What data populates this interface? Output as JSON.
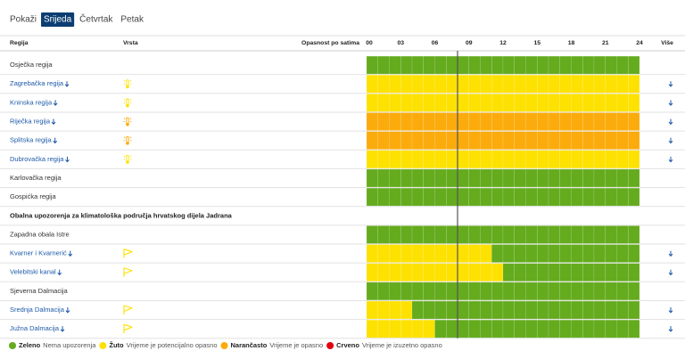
{
  "tabs": {
    "label": "Pokaži",
    "days": [
      "Srijeda",
      "Četvrtak",
      "Petak"
    ],
    "active": 0
  },
  "table": {
    "headers": {
      "region": "Regija",
      "type": "Vrsta",
      "hazard": "Opasnost po satima",
      "more": "Više"
    },
    "hour_range": [
      0,
      24
    ],
    "hours": [
      {
        "value": 0,
        "label": "00"
      },
      {
        "value": 3,
        "label": "03"
      },
      {
        "value": 6,
        "label": "06"
      },
      {
        "value": 9,
        "label": "09"
      },
      12,
      15,
      18,
      21,
      24
    ],
    "current_hour": 8,
    "rows": [
      {
        "name": "Osječka regija",
        "levels": [
          0,
          0,
          0,
          0,
          0,
          0,
          0,
          0,
          0,
          0,
          0,
          0,
          0,
          0,
          0,
          0,
          0,
          0,
          0,
          0,
          0,
          0,
          0,
          0
        ]
      },
      {
        "name": "Zagrebačka regija",
        "expandable": true,
        "warning_type": "heat",
        "levels": [
          1,
          1,
          1,
          1,
          1,
          1,
          1,
          1,
          1,
          1,
          1,
          1,
          1,
          1,
          1,
          1,
          1,
          1,
          1,
          1,
          1,
          1,
          1,
          1
        ]
      },
      {
        "name": "Kninska regija",
        "expandable": true,
        "warning_type": "heat",
        "levels": [
          1,
          1,
          1,
          1,
          1,
          1,
          1,
          1,
          1,
          1,
          1,
          1,
          1,
          1,
          1,
          1,
          1,
          1,
          1,
          1,
          1,
          1,
          1,
          1
        ]
      },
      {
        "name": "Riječka regija",
        "expandable": true,
        "warning_type": "heat",
        "icon_level": 2,
        "levels": [
          2,
          2,
          2,
          2,
          2,
          2,
          2,
          2,
          2,
          2,
          2,
          2,
          2,
          2,
          2,
          2,
          2,
          2,
          2,
          2,
          2,
          2,
          2,
          2
        ]
      },
      {
        "name": "Splitska regija",
        "expandable": true,
        "warning_type": "heat",
        "levels": [
          2,
          2,
          2,
          2,
          2,
          2,
          2,
          2,
          2,
          2,
          2,
          2,
          2,
          2,
          2,
          2,
          2,
          2,
          2,
          2,
          2,
          2,
          2,
          2
        ]
      },
      {
        "name": "Dubrovačka regija",
        "expandable": true,
        "warning_type": "heat",
        "levels": [
          1,
          1,
          1,
          1,
          1,
          1,
          1,
          1,
          1,
          1,
          1,
          1,
          1,
          1,
          1,
          1,
          1,
          1,
          1,
          1,
          1,
          1,
          1,
          1
        ]
      },
      {
        "name": "Karlovačka regija",
        "levels": [
          0,
          0,
          0,
          0,
          0,
          0,
          0,
          0,
          0,
          0,
          0,
          0,
          0,
          0,
          0,
          0,
          0,
          0,
          0,
          0,
          0,
          0,
          0,
          0
        ]
      },
      {
        "name": "Gospićka regija",
        "levels": [
          0,
          0,
          0,
          0,
          0,
          0,
          0,
          0,
          0,
          0,
          0,
          0,
          0,
          0,
          0,
          0,
          0,
          0,
          0,
          0,
          0,
          0,
          0,
          0
        ]
      },
      {
        "section": "Obalna upozorenja za klimatološka područja hrvatskog dijela Jadrana"
      },
      {
        "name": "Zapadna obala Istre",
        "levels": [
          0,
          0,
          0,
          0,
          0,
          0,
          0,
          0,
          0,
          0,
          0,
          0,
          0,
          0,
          0,
          0,
          0,
          0,
          0,
          0,
          0,
          0,
          0,
          0
        ]
      },
      {
        "name": "Kvarner i Kvarnerić",
        "expandable": true,
        "warning_type": "wind",
        "levels": [
          1,
          1,
          1,
          1,
          1,
          1,
          1,
          1,
          1,
          1,
          1,
          0,
          0,
          0,
          0,
          0,
          0,
          0,
          0,
          0,
          0,
          0,
          0,
          0
        ]
      },
      {
        "name": "Velebitski kanal",
        "expandable": true,
        "warning_type": "wind",
        "levels": [
          1,
          1,
          1,
          1,
          1,
          1,
          1,
          1,
          1,
          1,
          1,
          1,
          0,
          0,
          0,
          0,
          0,
          0,
          0,
          0,
          0,
          0,
          0,
          0
        ]
      },
      {
        "name": "Sjeverna Dalmacija",
        "levels": [
          0,
          0,
          0,
          0,
          0,
          0,
          0,
          0,
          0,
          0,
          0,
          0,
          0,
          0,
          0,
          0,
          0,
          0,
          0,
          0,
          0,
          0,
          0,
          0
        ]
      },
      {
        "name": "Srednja Dalmacija",
        "expandable": true,
        "warning_type": "wind",
        "levels": [
          1,
          1,
          1,
          1,
          0,
          0,
          0,
          0,
          0,
          0,
          0,
          0,
          0,
          0,
          0,
          0,
          0,
          0,
          0,
          0,
          0,
          0,
          0,
          0
        ]
      },
      {
        "name": "Južna Dalmacija",
        "expandable": true,
        "warning_type": "wind",
        "levels": [
          1,
          1,
          1,
          1,
          1,
          1,
          0,
          0,
          0,
          0,
          0,
          0,
          0,
          0,
          0,
          0,
          0,
          0,
          0,
          0,
          0,
          0,
          0,
          0
        ]
      }
    ]
  },
  "legend": [
    {
      "name": "Zeleno",
      "text": "Nema upozorenja",
      "color": "#64ab1e"
    },
    {
      "name": "Žuto",
      "text": "Vrijeme je potencijalno opasno",
      "color": "#fde100"
    },
    {
      "name": "Narančasto",
      "text": "Vrijeme je opasno",
      "color": "#fbab0c"
    },
    {
      "name": "Crveno",
      "text": "Vrijeme je izuzetno opasno",
      "color": "#e3000f"
    }
  ]
}
